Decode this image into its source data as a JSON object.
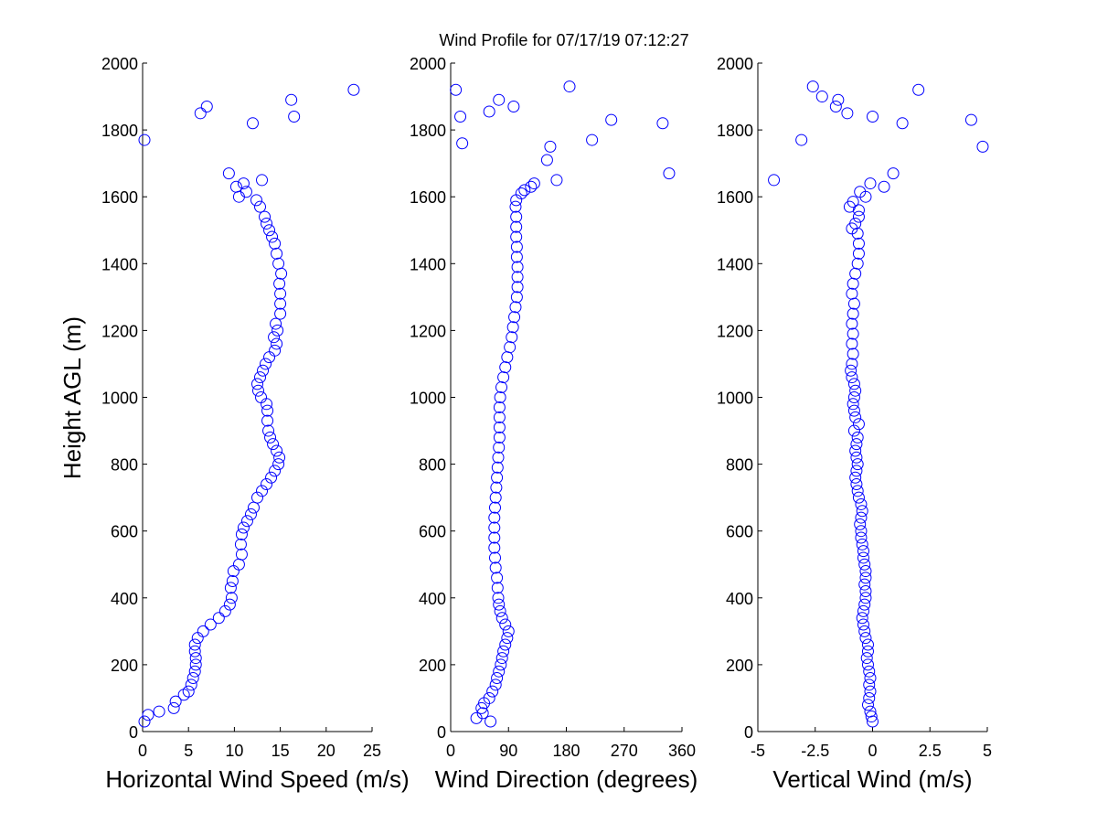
{
  "title": "Wind Profile for  07/17/19 07:12:27",
  "ylabel": "Height AGL (m)",
  "chart_data": [
    {
      "type": "scatter",
      "xlabel": "Horizontal Wind Speed (m/s)",
      "xlim": [
        0,
        25
      ],
      "ylim": [
        0,
        2000
      ],
      "xticks": [
        0,
        5,
        10,
        15,
        20,
        25
      ],
      "xtick_labels": [
        "0",
        "5",
        "10",
        "15",
        "20",
        "25"
      ],
      "yticks": [
        0,
        200,
        400,
        600,
        800,
        1000,
        1200,
        1400,
        1600,
        1800,
        2000
      ],
      "ytick_labels": [
        "0",
        "200",
        "400",
        "600",
        "800",
        "1000",
        "1200",
        "1400",
        "1600",
        "1800",
        "2000"
      ],
      "marker_color": "#0000ff",
      "series": [
        {
          "values": [
            [
              0.2,
              30
            ],
            [
              0.6,
              50
            ],
            [
              1.8,
              60
            ],
            [
              3.4,
              70
            ],
            [
              3.6,
              90
            ],
            [
              4.5,
              110
            ],
            [
              5.0,
              120
            ],
            [
              5.3,
              140
            ],
            [
              5.5,
              160
            ],
            [
              5.7,
              180
            ],
            [
              5.8,
              200
            ],
            [
              5.8,
              220
            ],
            [
              5.7,
              240
            ],
            [
              5.7,
              260
            ],
            [
              6.0,
              280
            ],
            [
              6.6,
              300
            ],
            [
              7.4,
              320
            ],
            [
              8.3,
              340
            ],
            [
              9.0,
              360
            ],
            [
              9.5,
              380
            ],
            [
              9.7,
              400
            ],
            [
              9.6,
              430
            ],
            [
              9.8,
              450
            ],
            [
              9.9,
              480
            ],
            [
              10.5,
              500
            ],
            [
              10.8,
              530
            ],
            [
              10.7,
              560
            ],
            [
              10.8,
              590
            ],
            [
              11.0,
              610
            ],
            [
              11.4,
              630
            ],
            [
              11.8,
              650
            ],
            [
              12.1,
              670
            ],
            [
              12.5,
              700
            ],
            [
              13.0,
              720
            ],
            [
              13.5,
              740
            ],
            [
              14.0,
              760
            ],
            [
              14.4,
              780
            ],
            [
              14.8,
              800
            ],
            [
              14.9,
              820
            ],
            [
              14.6,
              840
            ],
            [
              14.2,
              860
            ],
            [
              13.9,
              880
            ],
            [
              13.7,
              900
            ],
            [
              13.6,
              930
            ],
            [
              13.6,
              960
            ],
            [
              13.5,
              980
            ],
            [
              12.9,
              1000
            ],
            [
              12.6,
              1020
            ],
            [
              12.5,
              1040
            ],
            [
              12.8,
              1060
            ],
            [
              13.1,
              1080
            ],
            [
              13.4,
              1100
            ],
            [
              13.8,
              1120
            ],
            [
              14.4,
              1140
            ],
            [
              14.6,
              1160
            ],
            [
              14.3,
              1180
            ],
            [
              14.7,
              1200
            ],
            [
              14.5,
              1220
            ],
            [
              15.0,
              1250
            ],
            [
              15.0,
              1280
            ],
            [
              15.0,
              1310
            ],
            [
              14.9,
              1340
            ],
            [
              15.1,
              1370
            ],
            [
              14.8,
              1400
            ],
            [
              14.6,
              1430
            ],
            [
              14.4,
              1460
            ],
            [
              14.1,
              1480
            ],
            [
              13.8,
              1500
            ],
            [
              13.5,
              1520
            ],
            [
              13.3,
              1540
            ],
            [
              12.8,
              1570
            ],
            [
              12.4,
              1590
            ],
            [
              10.5,
              1600
            ],
            [
              11.3,
              1615
            ],
            [
              10.2,
              1630
            ],
            [
              11.0,
              1640
            ],
            [
              13.0,
              1650
            ],
            [
              9.4,
              1670
            ],
            [
              0.2,
              1770
            ],
            [
              12.0,
              1820
            ],
            [
              16.5,
              1840
            ],
            [
              6.3,
              1850
            ],
            [
              7.0,
              1870
            ],
            [
              16.2,
              1890
            ],
            [
              23.0,
              1920
            ]
          ]
        }
      ]
    },
    {
      "type": "scatter",
      "xlabel": "Wind Direction (degrees)",
      "xlim": [
        0,
        360
      ],
      "ylim": [
        0,
        2000
      ],
      "xticks": [
        0,
        90,
        180,
        270,
        360
      ],
      "xtick_labels": [
        "0",
        "90",
        "180",
        "270",
        "360"
      ],
      "yticks": [
        0,
        200,
        400,
        600,
        800,
        1000,
        1200,
        1400,
        1600,
        1800,
        2000
      ],
      "ytick_labels": [
        "0",
        "200",
        "400",
        "600",
        "800",
        "1000",
        "1200",
        "1400",
        "1600",
        "1800",
        "2000"
      ],
      "marker_color": "#0000ff",
      "series": [
        {
          "values": [
            [
              62,
              30
            ],
            [
              40,
              40
            ],
            [
              50,
              55
            ],
            [
              48,
              70
            ],
            [
              52,
              85
            ],
            [
              60,
              100
            ],
            [
              65,
              120
            ],
            [
              70,
              140
            ],
            [
              72,
              160
            ],
            [
              75,
              180
            ],
            [
              78,
              200
            ],
            [
              80,
              220
            ],
            [
              82,
              240
            ],
            [
              85,
              260
            ],
            [
              88,
              280
            ],
            [
              90,
              300
            ],
            [
              85,
              320
            ],
            [
              80,
              340
            ],
            [
              77,
              360
            ],
            [
              75,
              380
            ],
            [
              74,
              400
            ],
            [
              73,
              430
            ],
            [
              72,
              460
            ],
            [
              70,
              490
            ],
            [
              69,
              520
            ],
            [
              68,
              550
            ],
            [
              68,
              580
            ],
            [
              68,
              610
            ],
            [
              68,
              640
            ],
            [
              69,
              670
            ],
            [
              70,
              700
            ],
            [
              71,
              730
            ],
            [
              72,
              760
            ],
            [
              73,
              790
            ],
            [
              74,
              820
            ],
            [
              75,
              850
            ],
            [
              76,
              880
            ],
            [
              76,
              910
            ],
            [
              76,
              940
            ],
            [
              76,
              970
            ],
            [
              77,
              1000
            ],
            [
              79,
              1030
            ],
            [
              82,
              1060
            ],
            [
              85,
              1090
            ],
            [
              88,
              1120
            ],
            [
              92,
              1150
            ],
            [
              95,
              1180
            ],
            [
              97,
              1210
            ],
            [
              99,
              1240
            ],
            [
              101,
              1270
            ],
            [
              103,
              1300
            ],
            [
              104,
              1330
            ],
            [
              104,
              1360
            ],
            [
              104,
              1390
            ],
            [
              103,
              1420
            ],
            [
              103,
              1450
            ],
            [
              102,
              1480
            ],
            [
              102,
              1510
            ],
            [
              102,
              1540
            ],
            [
              101,
              1570
            ],
            [
              102,
              1590
            ],
            [
              110,
              1610
            ],
            [
              115,
              1620
            ],
            [
              125,
              1630
            ],
            [
              130,
              1640
            ],
            [
              165,
              1650
            ],
            [
              340,
              1670
            ],
            [
              150,
              1710
            ],
            [
              155,
              1750
            ],
            [
              18,
              1760
            ],
            [
              220,
              1770
            ],
            [
              330,
              1820
            ],
            [
              250,
              1830
            ],
            [
              15,
              1840
            ],
            [
              60,
              1855
            ],
            [
              98,
              1870
            ],
            [
              75,
              1890
            ],
            [
              8,
              1920
            ],
            [
              185,
              1930
            ]
          ]
        }
      ]
    },
    {
      "type": "scatter",
      "xlabel": "Vertical Wind (m/s)",
      "xlim": [
        -5,
        5
      ],
      "ylim": [
        0,
        2000
      ],
      "xticks": [
        -5,
        -2.5,
        0,
        2.5,
        5
      ],
      "xtick_labels": [
        "-5",
        "-2.5",
        "0",
        "2.5",
        "5"
      ],
      "yticks": [
        0,
        200,
        400,
        600,
        800,
        1000,
        1200,
        1400,
        1600,
        1800,
        2000
      ],
      "ytick_labels": [
        "0",
        "200",
        "400",
        "600",
        "800",
        "1000",
        "1200",
        "1400",
        "1600",
        "1800",
        "2000"
      ],
      "marker_color": "#0000ff",
      "series": [
        {
          "values": [
            [
              0.0,
              30
            ],
            [
              -0.05,
              45
            ],
            [
              -0.1,
              60
            ],
            [
              -0.2,
              80
            ],
            [
              -0.15,
              100
            ],
            [
              -0.1,
              120
            ],
            [
              -0.15,
              140
            ],
            [
              -0.1,
              160
            ],
            [
              -0.15,
              180
            ],
            [
              -0.2,
              200
            ],
            [
              -0.25,
              220
            ],
            [
              -0.2,
              240
            ],
            [
              -0.2,
              260
            ],
            [
              -0.3,
              280
            ],
            [
              -0.35,
              300
            ],
            [
              -0.4,
              320
            ],
            [
              -0.45,
              340
            ],
            [
              -0.4,
              360
            ],
            [
              -0.35,
              380
            ],
            [
              -0.3,
              400
            ],
            [
              -0.3,
              420
            ],
            [
              -0.35,
              440
            ],
            [
              -0.3,
              460
            ],
            [
              -0.3,
              480
            ],
            [
              -0.35,
              500
            ],
            [
              -0.4,
              520
            ],
            [
              -0.4,
              540
            ],
            [
              -0.45,
              560
            ],
            [
              -0.5,
              580
            ],
            [
              -0.5,
              600
            ],
            [
              -0.55,
              620
            ],
            [
              -0.5,
              640
            ],
            [
              -0.45,
              660
            ],
            [
              -0.5,
              680
            ],
            [
              -0.6,
              700
            ],
            [
              -0.65,
              720
            ],
            [
              -0.7,
              740
            ],
            [
              -0.75,
              760
            ],
            [
              -0.7,
              780
            ],
            [
              -0.65,
              800
            ],
            [
              -0.7,
              820
            ],
            [
              -0.75,
              840
            ],
            [
              -0.7,
              860
            ],
            [
              -0.65,
              880
            ],
            [
              -0.8,
              900
            ],
            [
              -0.6,
              920
            ],
            [
              -0.75,
              940
            ],
            [
              -0.8,
              960
            ],
            [
              -0.85,
              980
            ],
            [
              -0.8,
              1000
            ],
            [
              -0.75,
              1020
            ],
            [
              -0.8,
              1040
            ],
            [
              -0.9,
              1060
            ],
            [
              -0.95,
              1080
            ],
            [
              -0.9,
              1100
            ],
            [
              -0.85,
              1130
            ],
            [
              -0.9,
              1160
            ],
            [
              -0.85,
              1190
            ],
            [
              -0.9,
              1220
            ],
            [
              -0.85,
              1250
            ],
            [
              -0.8,
              1280
            ],
            [
              -0.9,
              1310
            ],
            [
              -0.85,
              1340
            ],
            [
              -0.75,
              1370
            ],
            [
              -0.65,
              1400
            ],
            [
              -0.6,
              1430
            ],
            [
              -0.6,
              1460
            ],
            [
              -0.65,
              1490
            ],
            [
              -0.9,
              1505
            ],
            [
              -0.75,
              1520
            ],
            [
              -0.6,
              1540
            ],
            [
              -0.6,
              1560
            ],
            [
              -1.0,
              1570
            ],
            [
              -0.85,
              1585
            ],
            [
              -0.3,
              1600
            ],
            [
              -0.55,
              1615
            ],
            [
              -0.1,
              1640
            ],
            [
              -4.3,
              1650
            ],
            [
              0.5,
              1630
            ],
            [
              0.9,
              1670
            ],
            [
              4.8,
              1750
            ],
            [
              -3.1,
              1770
            ],
            [
              1.3,
              1820
            ],
            [
              4.3,
              1830
            ],
            [
              0.0,
              1840
            ],
            [
              -1.1,
              1850
            ],
            [
              -1.6,
              1870
            ],
            [
              -1.5,
              1890
            ],
            [
              -2.2,
              1900
            ],
            [
              2.0,
              1920
            ],
            [
              -2.6,
              1930
            ]
          ]
        }
      ]
    }
  ]
}
